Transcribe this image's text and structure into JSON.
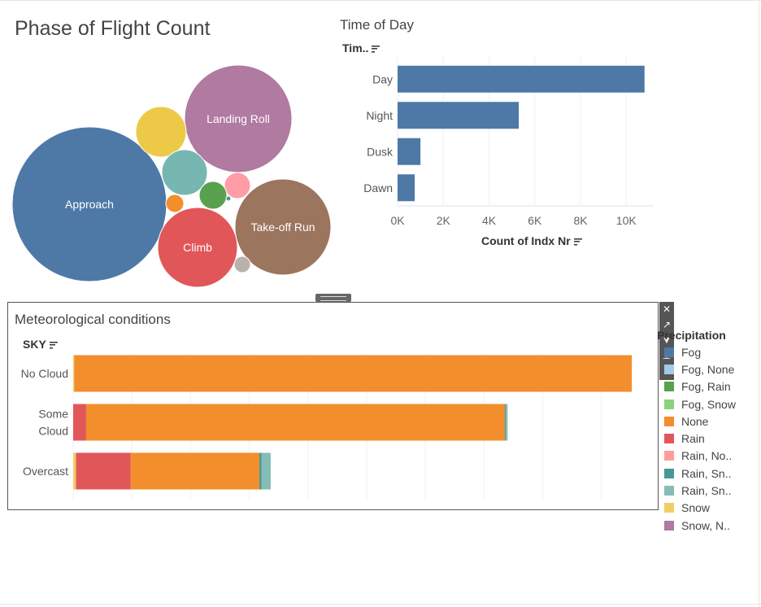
{
  "phase_of_flight": {
    "title": "Phase of Flight Count",
    "bubbles": [
      {
        "label": "Approach",
        "color": "#4e79a7",
        "size": 95
      },
      {
        "label": "Landing Roll",
        "color": "#b07aa1",
        "size": 66
      },
      {
        "label": "Take-off Run",
        "color": "#9c755f",
        "size": 59
      },
      {
        "label": "Climb",
        "color": "#e15759",
        "size": 49
      },
      {
        "label": "",
        "color": "#edc948",
        "size": 31
      },
      {
        "label": "",
        "color": "#76b7b2",
        "size": 28
      },
      {
        "label": "",
        "color": "#ff9da7",
        "size": 16
      },
      {
        "label": "",
        "color": "#59a14f",
        "size": 17
      },
      {
        "label": "",
        "color": "#f28e2b",
        "size": 11
      },
      {
        "label": "",
        "color": "#bab0ac",
        "size": 10
      },
      {
        "label": "",
        "color": "#499894",
        "size": 3
      }
    ]
  },
  "time_of_day": {
    "title": "Time of Day",
    "dim_header": "Tim..",
    "measure_label": "Count of Indx Nr",
    "chart_data": {
      "type": "bar",
      "orientation": "horizontal",
      "categories": [
        "Day",
        "Night",
        "Dusk",
        "Dawn"
      ],
      "values": [
        10800,
        5300,
        1000,
        750
      ],
      "xlim": [
        0,
        11200
      ],
      "ticks": [
        0,
        2000,
        4000,
        6000,
        8000,
        10000
      ],
      "tick_labels": [
        "0K",
        "2K",
        "4K",
        "6K",
        "8K",
        "10K"
      ],
      "color": "#4e79a7",
      "xlabel": "Count of Indx Nr"
    }
  },
  "meteorological": {
    "title": "Meteorological conditions",
    "dim_header": "SKY",
    "chart_data": {
      "type": "bar",
      "orientation": "horizontal",
      "stacked": true,
      "categories": [
        "No Cloud",
        "Some Cloud",
        "Overcast"
      ],
      "category_lines": [
        [
          "No Cloud"
        ],
        [
          "Some",
          "Cloud"
        ],
        [
          "Overcast"
        ]
      ],
      "xlim": [
        0,
        1
      ],
      "series": [
        {
          "name": "Fog",
          "values": [
            0,
            0,
            0
          ]
        },
        {
          "name": "Fog, None",
          "values": [
            0,
            0,
            0
          ]
        },
        {
          "name": "Fog, Rain",
          "values": [
            0,
            0,
            0
          ]
        },
        {
          "name": "Fog, Snow",
          "values": [
            0,
            0,
            0
          ]
        },
        {
          "name": "Snow",
          "values": [
            0.002,
            0.0,
            0.005
          ]
        },
        {
          "name": "Rain",
          "values": [
            0.0,
            0.023,
            0.097
          ]
        },
        {
          "name": "None",
          "values": [
            0.988,
            0.742,
            0.228
          ]
        },
        {
          "name": "Rain, No..",
          "values": [
            0,
            0,
            0
          ]
        },
        {
          "name": "Rain, Sn..",
          "values": [
            0.0,
            0.002,
            0.004
          ]
        },
        {
          "name": "Rain, Sn.. ",
          "values": [
            0.0,
            0.003,
            0.016
          ]
        },
        {
          "name": "Snow, N..",
          "values": [
            0,
            0,
            0
          ]
        }
      ]
    }
  },
  "legend": {
    "title": "Precipitation",
    "items": [
      {
        "label": "Fog",
        "color": "#4e79a7"
      },
      {
        "label": "Fog, None",
        "color": "#a0cbe8"
      },
      {
        "label": "Fog, Rain",
        "color": "#59a14f"
      },
      {
        "label": "Fog, Snow",
        "color": "#8cd17d"
      },
      {
        "label": "None",
        "color": "#f28e2b"
      },
      {
        "label": "Rain",
        "color": "#e15759"
      },
      {
        "label": "Rain, No..",
        "color": "#ff9d9a"
      },
      {
        "label": "Rain, Sn..",
        "color": "#499894"
      },
      {
        "label": "Rain, Sn..",
        "color": "#86bcb6"
      },
      {
        "label": "Snow",
        "color": "#f1ce63"
      },
      {
        "label": "Snow, N..",
        "color": "#b07aa1"
      }
    ]
  },
  "series_colors": {
    "Fog": "#4e79a7",
    "Fog, None": "#a0cbe8",
    "Fog, Rain": "#59a14f",
    "Fog, Snow": "#8cd17d",
    "Snow": "#f1ce63",
    "Rain": "#e15759",
    "None": "#f28e2b",
    "Rain, No..": "#ff9d9a",
    "Rain, Sn..": "#499894",
    "Rain, Sn.. ": "#86bcb6",
    "Snow, N..": "#b07aa1"
  },
  "toolbar": {
    "close_glyph": "✕",
    "popout_glyph": "↗",
    "filter_glyph": "▼",
    "pin_glyph": "⊥",
    "more_glyph": "▾"
  }
}
